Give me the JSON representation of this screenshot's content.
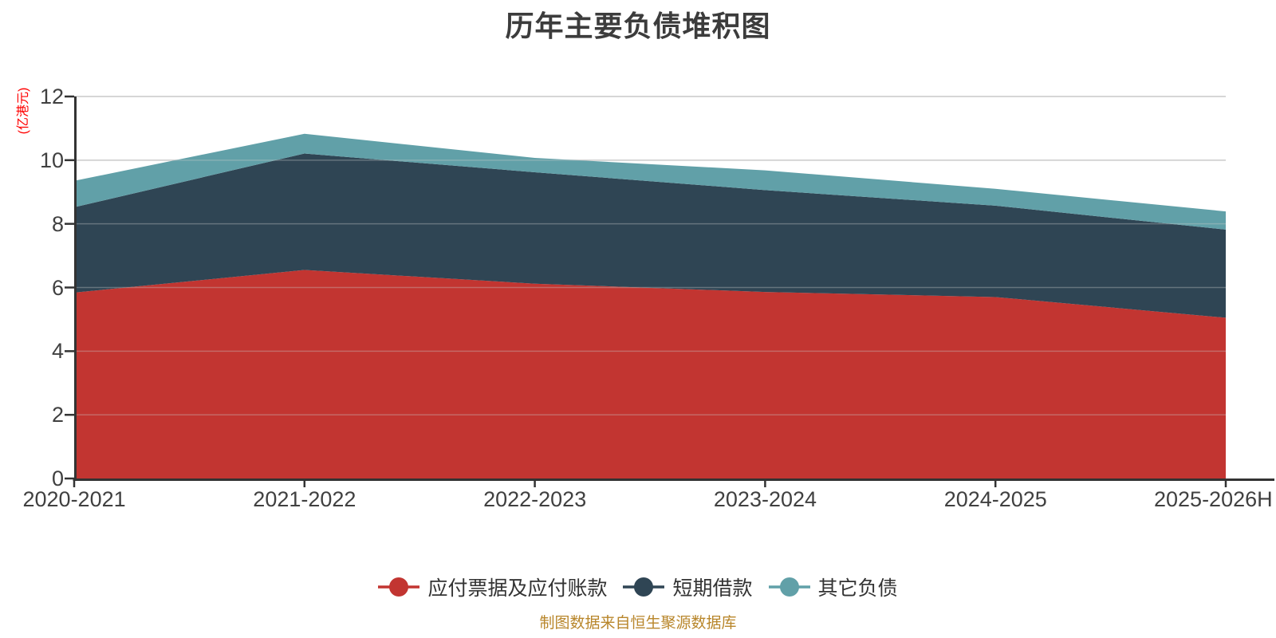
{
  "title": "历年主要负债堆积图",
  "footer": "制图数据来自恒生聚源数据库",
  "colors": {
    "background": "#ffffff",
    "title_text": "#3c3c3c",
    "axis_label": "#404040",
    "axis_line": "#333333",
    "grid_line": "#cccccc",
    "legend_text": "#333333",
    "footer_text": "#b8862b",
    "y_axis_name": "#ff0000"
  },
  "chart_data": {
    "type": "area",
    "stacked": true,
    "title": "历年主要负债堆积图",
    "categories": [
      "2020-2021",
      "2021-2022",
      "2022-2023",
      "2023-2024",
      "2024-2025",
      "2025-2026H"
    ],
    "series": [
      {
        "name": "应付票据及应付账款",
        "color": "#c23531",
        "values": [
          5.84,
          6.55,
          6.12,
          5.86,
          5.7,
          5.05
        ]
      },
      {
        "name": "短期借款",
        "color": "#2f4554",
        "values": [
          2.68,
          3.66,
          3.5,
          3.2,
          2.87,
          2.77
        ]
      },
      {
        "name": "其它负债",
        "color": "#61a0a8",
        "values": [
          0.83,
          0.62,
          0.45,
          0.62,
          0.53,
          0.57
        ]
      }
    ],
    "ylabel": "(亿港元)",
    "xlabel": "",
    "ylim": [
      0,
      12
    ],
    "y_ticks": [
      0,
      2,
      4,
      6,
      8,
      10,
      12
    ],
    "grid": true,
    "legend_position": "bottom"
  }
}
